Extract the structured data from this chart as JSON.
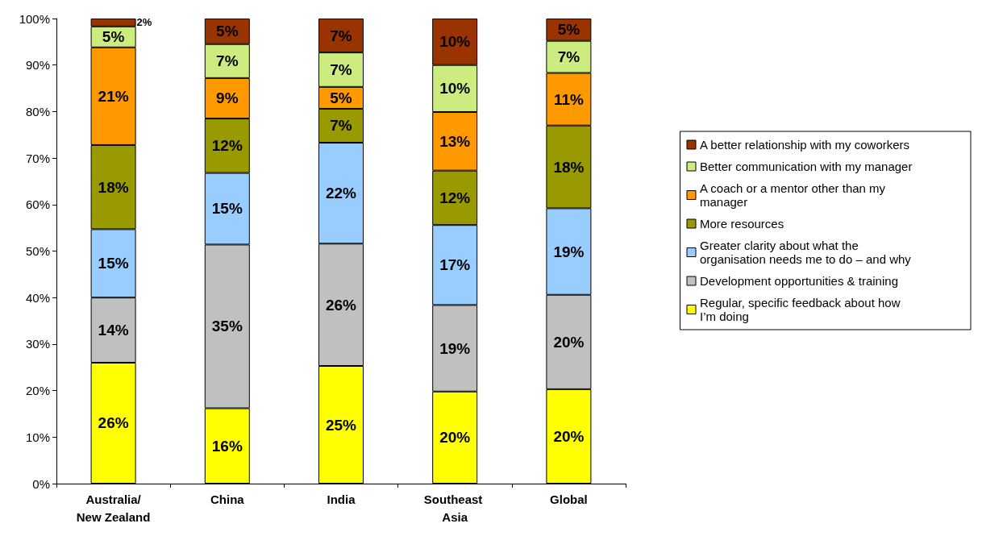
{
  "chart_data": {
    "type": "bar",
    "stacked": true,
    "categories": [
      "Australia/New Zealand",
      "China",
      "India",
      "Southeast Asia",
      "Global"
    ],
    "series": [
      {
        "name": "Regular, specific feedback about how I’m doing",
        "color": "#ffff00",
        "values": [
          26.0,
          16.2,
          25.3,
          19.8,
          20.3
        ],
        "value_labels": [
          "26%",
          "16%",
          "25%",
          "20%",
          "20%"
        ]
      },
      {
        "name": "Development opportunities & training",
        "color": "#c0c0c0",
        "values": [
          14.0,
          35.2,
          26.3,
          18.6,
          20.3
        ],
        "value_labels": [
          "14%",
          "35%",
          "26%",
          "19%",
          "20%"
        ]
      },
      {
        "name": "Greater clarity about what the organisation needs me to do – and why",
        "color": "#99ccff",
        "values": [
          14.7,
          15.4,
          21.7,
          17.2,
          18.6
        ],
        "value_labels": [
          "15%",
          "15%",
          "22%",
          "17%",
          "19%"
        ]
      },
      {
        "name": "More resources",
        "color": "#999900",
        "values": [
          18.1,
          11.7,
          7.3,
          11.7,
          17.8
        ],
        "value_labels": [
          "18%",
          "12%",
          "7%",
          "12%",
          "18%"
        ]
      },
      {
        "name": "A coach or a mentor other than my manager",
        "color": "#ff9900",
        "values": [
          21.0,
          8.7,
          4.7,
          12.6,
          11.3
        ],
        "value_labels": [
          "21%",
          "9%",
          "5%",
          "13%",
          "11%"
        ]
      },
      {
        "name": "Better communication with my manager",
        "color": "#ccec80",
        "values": [
          4.5,
          7.3,
          7.4,
          10.1,
          6.9
        ],
        "value_labels": [
          "5%",
          "7%",
          "7%",
          "10%",
          "7%"
        ]
      },
      {
        "name": "A better relationship with my coworkers",
        "color": "#993300",
        "values": [
          1.7,
          5.5,
          7.3,
          10.0,
          4.8
        ],
        "value_labels": [
          "2%",
          "5%",
          "7%",
          "10%",
          "5%"
        ]
      }
    ],
    "ylim": [
      0,
      100
    ],
    "yticks": [
      {
        "value": 0,
        "label": "0%"
      },
      {
        "value": 10,
        "label": "10%"
      },
      {
        "value": 20,
        "label": "20%"
      },
      {
        "value": 30,
        "label": "30%"
      },
      {
        "value": 40,
        "label": "40%"
      },
      {
        "value": 50,
        "label": "50%"
      },
      {
        "value": 60,
        "label": "60%"
      },
      {
        "value": 70,
        "label": "70%"
      },
      {
        "value": 80,
        "label": "80%"
      },
      {
        "value": 90,
        "label": "90%"
      },
      {
        "value": 100,
        "label": "100%"
      }
    ],
    "grid": false,
    "legend": "right"
  }
}
